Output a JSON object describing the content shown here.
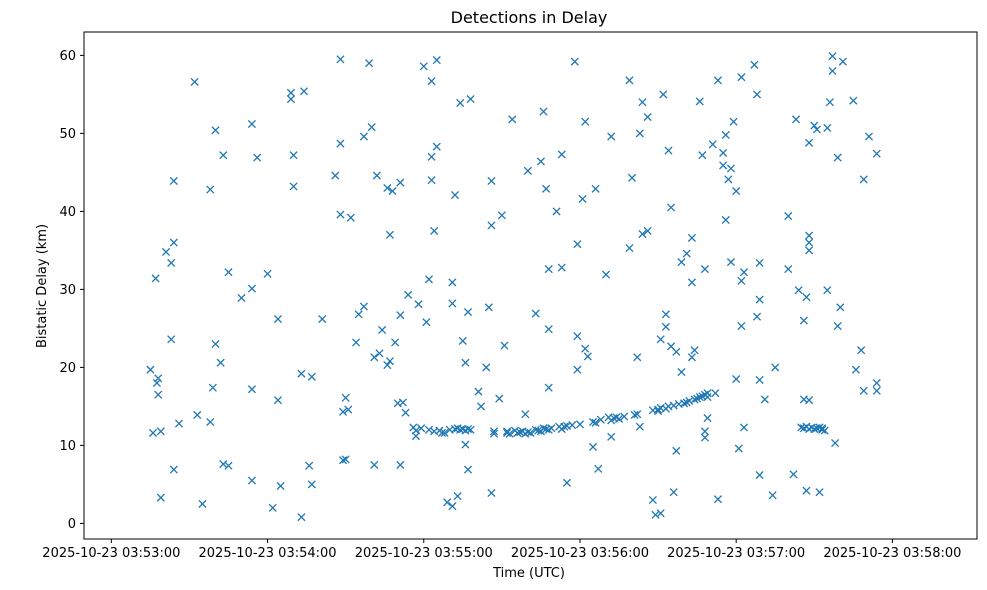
{
  "chart_data": {
    "type": "scatter",
    "title": "Detections in Delay",
    "xlabel": "Time (UTC)",
    "ylabel": "Bistatic Delay (km)",
    "marker": "x",
    "color": "#1f77b4",
    "xlim": [
      -10.5,
      332.5
    ],
    "ylim": [
      -2,
      63
    ],
    "x_unit": "seconds after 2025-10-23 03:53:00",
    "xticks": [
      0,
      60,
      120,
      180,
      240,
      300
    ],
    "xtick_labels": [
      "2025-10-23 03:53:00",
      "2025-10-23 03:54:00",
      "2025-10-23 03:55:00",
      "2025-10-23 03:56:00",
      "2025-10-23 03:57:00",
      "2025-10-23 03:58:00"
    ],
    "yticks": [
      0,
      10,
      20,
      30,
      40,
      50,
      60
    ],
    "ytick_labels": [
      "0",
      "10",
      "20",
      "30",
      "40",
      "50",
      "60"
    ],
    "points": [
      [
        15,
        19.7
      ],
      [
        16,
        11.6
      ],
      [
        17,
        31.4
      ],
      [
        17.5,
        18.0
      ],
      [
        18,
        18.6
      ],
      [
        18,
        16.5
      ],
      [
        19,
        11.8
      ],
      [
        19,
        3.3
      ],
      [
        21,
        34.8
      ],
      [
        23,
        33.4
      ],
      [
        23,
        23.6
      ],
      [
        24,
        36.0
      ],
      [
        24,
        43.9
      ],
      [
        24,
        6.9
      ],
      [
        26,
        12.8
      ],
      [
        32,
        56.6
      ],
      [
        33,
        13.9
      ],
      [
        35,
        2.5
      ],
      [
        38,
        13.0
      ],
      [
        38,
        42.8
      ],
      [
        39,
        17.4
      ],
      [
        40,
        50.4
      ],
      [
        40,
        23.0
      ],
      [
        42,
        20.6
      ],
      [
        43,
        47.2
      ],
      [
        43,
        7.6
      ],
      [
        45,
        32.2
      ],
      [
        45,
        7.4
      ],
      [
        50,
        28.9
      ],
      [
        54,
        51.2
      ],
      [
        54,
        30.1
      ],
      [
        54,
        17.2
      ],
      [
        54,
        5.5
      ],
      [
        56,
        46.9
      ],
      [
        60,
        32.0
      ],
      [
        62,
        2.0
      ],
      [
        64,
        26.2
      ],
      [
        64,
        15.8
      ],
      [
        65,
        4.8
      ],
      [
        69,
        55.2
      ],
      [
        69,
        54.4
      ],
      [
        70,
        47.2
      ],
      [
        70,
        43.2
      ],
      [
        73,
        19.2
      ],
      [
        73,
        0.8
      ],
      [
        74,
        55.4
      ],
      [
        76,
        7.4
      ],
      [
        77,
        18.8
      ],
      [
        77,
        5.0
      ],
      [
        81,
        26.2
      ],
      [
        86,
        44.6
      ],
      [
        88,
        59.5
      ],
      [
        88,
        48.7
      ],
      [
        88,
        39.6
      ],
      [
        89,
        14.3
      ],
      [
        89,
        8.1
      ],
      [
        90,
        8.2
      ],
      [
        90,
        16.1
      ],
      [
        91,
        14.6
      ],
      [
        92,
        39.2
      ],
      [
        94,
        23.2
      ],
      [
        95,
        26.8
      ],
      [
        97,
        27.8
      ],
      [
        97,
        49.6
      ],
      [
        99,
        59.0
      ],
      [
        100,
        50.8
      ],
      [
        101,
        21.3
      ],
      [
        101,
        7.5
      ],
      [
        102,
        44.6
      ],
      [
        103,
        21.8
      ],
      [
        104,
        24.8
      ],
      [
        106,
        43.0
      ],
      [
        106,
        20.3
      ],
      [
        107,
        20.8
      ],
      [
        107,
        37.0
      ],
      [
        108,
        42.6
      ],
      [
        109,
        23.2
      ],
      [
        110,
        15.4
      ],
      [
        111,
        43.7
      ],
      [
        111,
        26.7
      ],
      [
        111,
        7.5
      ],
      [
        112,
        15.5
      ],
      [
        113,
        14.2
      ],
      [
        114,
        29.3
      ],
      [
        116,
        12.3
      ],
      [
        117,
        11.9
      ],
      [
        117,
        11.2
      ],
      [
        118,
        28.1
      ],
      [
        119,
        12.2
      ],
      [
        120,
        58.6
      ],
      [
        121,
        25.8
      ],
      [
        122,
        12.0
      ],
      [
        122,
        31.3
      ],
      [
        123,
        47.0
      ],
      [
        123,
        44.0
      ],
      [
        123,
        56.7
      ],
      [
        124,
        11.8
      ],
      [
        124,
        37.5
      ],
      [
        125,
        48.3
      ],
      [
        125,
        59.4
      ],
      [
        126,
        11.9
      ],
      [
        127,
        11.6
      ],
      [
        128,
        11.6
      ],
      [
        129,
        2.7
      ],
      [
        130,
        12.0
      ],
      [
        131,
        2.2
      ],
      [
        131,
        28.2
      ],
      [
        131,
        30.9
      ],
      [
        132,
        12.1
      ],
      [
        132,
        42.1
      ],
      [
        133,
        12.2
      ],
      [
        133,
        3.5
      ],
      [
        134,
        12.0
      ],
      [
        134,
        53.9
      ],
      [
        135,
        12.1
      ],
      [
        135,
        23.4
      ],
      [
        136,
        11.9
      ],
      [
        136,
        10.1
      ],
      [
        136,
        20.6
      ],
      [
        137,
        12.1
      ],
      [
        137,
        6.9
      ],
      [
        137,
        27.1
      ],
      [
        138,
        12.0
      ],
      [
        138,
        54.4
      ],
      [
        141,
        16.9
      ],
      [
        142,
        15.0
      ],
      [
        144,
        20.0
      ],
      [
        145,
        27.7
      ],
      [
        146,
        3.9
      ],
      [
        146,
        38.2
      ],
      [
        146,
        43.9
      ],
      [
        147,
        11.8
      ],
      [
        147,
        11.5
      ],
      [
        149,
        16.0
      ],
      [
        150,
        39.5
      ],
      [
        151,
        22.8
      ],
      [
        152,
        11.8
      ],
      [
        152,
        11.6
      ],
      [
        153,
        11.5
      ],
      [
        154,
        51.8
      ],
      [
        155,
        11.9
      ],
      [
        156,
        11.6
      ],
      [
        157,
        11.7
      ],
      [
        158,
        11.8
      ],
      [
        159,
        11.5
      ],
      [
        159,
        14.0
      ],
      [
        160,
        45.2
      ],
      [
        160,
        11.7
      ],
      [
        161,
        11.6
      ],
      [
        163,
        12.0
      ],
      [
        163,
        26.9
      ],
      [
        164,
        11.9
      ],
      [
        165,
        11.8
      ],
      [
        165,
        46.4
      ],
      [
        166,
        12.2
      ],
      [
        166,
        52.8
      ],
      [
        167,
        12.1
      ],
      [
        167,
        42.9
      ],
      [
        168,
        12.0
      ],
      [
        168,
        32.6
      ],
      [
        168,
        24.9
      ],
      [
        168,
        17.4
      ],
      [
        169,
        12.2
      ],
      [
        171,
        40.0
      ],
      [
        172,
        12.4
      ],
      [
        173,
        12.1
      ],
      [
        173,
        47.3
      ],
      [
        173,
        32.8
      ],
      [
        174,
        12.4
      ],
      [
        175,
        12.5
      ],
      [
        175,
        5.2
      ],
      [
        177,
        12.6
      ],
      [
        178,
        59.2
      ],
      [
        179,
        35.8
      ],
      [
        179,
        24.0
      ],
      [
        179,
        19.7
      ],
      [
        180,
        12.7
      ],
      [
        181,
        41.6
      ],
      [
        182,
        51.5
      ],
      [
        182,
        22.4
      ],
      [
        183,
        21.4
      ],
      [
        185,
        13.0
      ],
      [
        185,
        9.8
      ],
      [
        186,
        42.9
      ],
      [
        186,
        12.9
      ],
      [
        187,
        7.0
      ],
      [
        188,
        13.3
      ],
      [
        190,
        31.9
      ],
      [
        191,
        13.6
      ],
      [
        192,
        49.6
      ],
      [
        192,
        13.2
      ],
      [
        192,
        11.1
      ],
      [
        193,
        13.5
      ],
      [
        194,
        13.6
      ],
      [
        195,
        13.4
      ],
      [
        197,
        13.7
      ],
      [
        199,
        35.3
      ],
      [
        199,
        56.8
      ],
      [
        200,
        44.3
      ],
      [
        201,
        13.9
      ],
      [
        202,
        21.3
      ],
      [
        202,
        14.0
      ],
      [
        203,
        50.0
      ],
      [
        203,
        12.4
      ],
      [
        204,
        37.1
      ],
      [
        204,
        54.0
      ],
      [
        206,
        37.5
      ],
      [
        206,
        52.1
      ],
      [
        208,
        3.0
      ],
      [
        208,
        14.5
      ],
      [
        209,
        1.1
      ],
      [
        210,
        14.6
      ],
      [
        210,
        14.4
      ],
      [
        211,
        23.6
      ],
      [
        211,
        1.3
      ],
      [
        211,
        14.8
      ],
      [
        212,
        55.0
      ],
      [
        213,
        14.7
      ],
      [
        213,
        25.2
      ],
      [
        213,
        26.8
      ],
      [
        214,
        47.8
      ],
      [
        214,
        15.0
      ],
      [
        215,
        22.7
      ],
      [
        215,
        40.5
      ],
      [
        216,
        15.1
      ],
      [
        216,
        4.0
      ],
      [
        217,
        22.0
      ],
      [
        217,
        9.3
      ],
      [
        218,
        15.3
      ],
      [
        219,
        33.5
      ],
      [
        219,
        19.4
      ],
      [
        220,
        15.4
      ],
      [
        221,
        34.6
      ],
      [
        221,
        15.5
      ],
      [
        222,
        15.7
      ],
      [
        223,
        21.3
      ],
      [
        223,
        30.9
      ],
      [
        223,
        36.6
      ],
      [
        224,
        15.9
      ],
      [
        224,
        22.2
      ],
      [
        225,
        16.0
      ],
      [
        226,
        54.1
      ],
      [
        226,
        16.2
      ],
      [
        227,
        16.3
      ],
      [
        227,
        47.2
      ],
      [
        228,
        16.5
      ],
      [
        228,
        11.8
      ],
      [
        228,
        11.0
      ],
      [
        228,
        32.6
      ],
      [
        229,
        16.7
      ],
      [
        229,
        13.5
      ],
      [
        229,
        16.2
      ],
      [
        231,
        48.6
      ],
      [
        232,
        16.7
      ],
      [
        233,
        3.1
      ],
      [
        233,
        56.8
      ],
      [
        235,
        47.5
      ],
      [
        235,
        45.9
      ],
      [
        236,
        38.9
      ],
      [
        236,
        49.8
      ],
      [
        237,
        44.1
      ],
      [
        238,
        45.5
      ],
      [
        238,
        33.5
      ],
      [
        239,
        51.5
      ],
      [
        240,
        18.5
      ],
      [
        240,
        42.6
      ],
      [
        241,
        9.6
      ],
      [
        242,
        57.2
      ],
      [
        242,
        31.1
      ],
      [
        242,
        25.3
      ],
      [
        243,
        12.3
      ],
      [
        243,
        32.2
      ],
      [
        247,
        58.8
      ],
      [
        248,
        55.0
      ],
      [
        248,
        26.5
      ],
      [
        249,
        33.4
      ],
      [
        249,
        28.7
      ],
      [
        249,
        18.4
      ],
      [
        249,
        6.2
      ],
      [
        251,
        15.9
      ],
      [
        254,
        3.6
      ],
      [
        255,
        20.0
      ],
      [
        260,
        39.4
      ],
      [
        260,
        32.6
      ],
      [
        262,
        6.3
      ],
      [
        263,
        51.8
      ],
      [
        264,
        29.9
      ],
      [
        265,
        12.3
      ],
      [
        266,
        26.0
      ],
      [
        266,
        15.9
      ],
      [
        266,
        12.2
      ],
      [
        267,
        29.0
      ],
      [
        267,
        12.4
      ],
      [
        267,
        4.2
      ],
      [
        268,
        12.1
      ],
      [
        268,
        35.0
      ],
      [
        268,
        36.0
      ],
      [
        268,
        36.9
      ],
      [
        268,
        48.8
      ],
      [
        268,
        15.8
      ],
      [
        269,
        12.3
      ],
      [
        270,
        12.1
      ],
      [
        270,
        51.0
      ],
      [
        271,
        12.2
      ],
      [
        271,
        50.5
      ],
      [
        272,
        12.3
      ],
      [
        272,
        4.0
      ],
      [
        273,
        12.0
      ],
      [
        273,
        12.2
      ],
      [
        274,
        11.9
      ],
      [
        275,
        50.7
      ],
      [
        275,
        29.9
      ],
      [
        276,
        54.0
      ],
      [
        277,
        58.0
      ],
      [
        277,
        59.9
      ],
      [
        278,
        10.3
      ],
      [
        279,
        25.3
      ],
      [
        279,
        46.9
      ],
      [
        280,
        27.7
      ],
      [
        281,
        59.2
      ],
      [
        285,
        54.2
      ],
      [
        286,
        19.7
      ],
      [
        288,
        22.2
      ],
      [
        289,
        17.0
      ],
      [
        289,
        44.1
      ],
      [
        291,
        49.6
      ],
      [
        294,
        17.0
      ],
      [
        294,
        18.0
      ],
      [
        294,
        47.4
      ]
    ]
  }
}
